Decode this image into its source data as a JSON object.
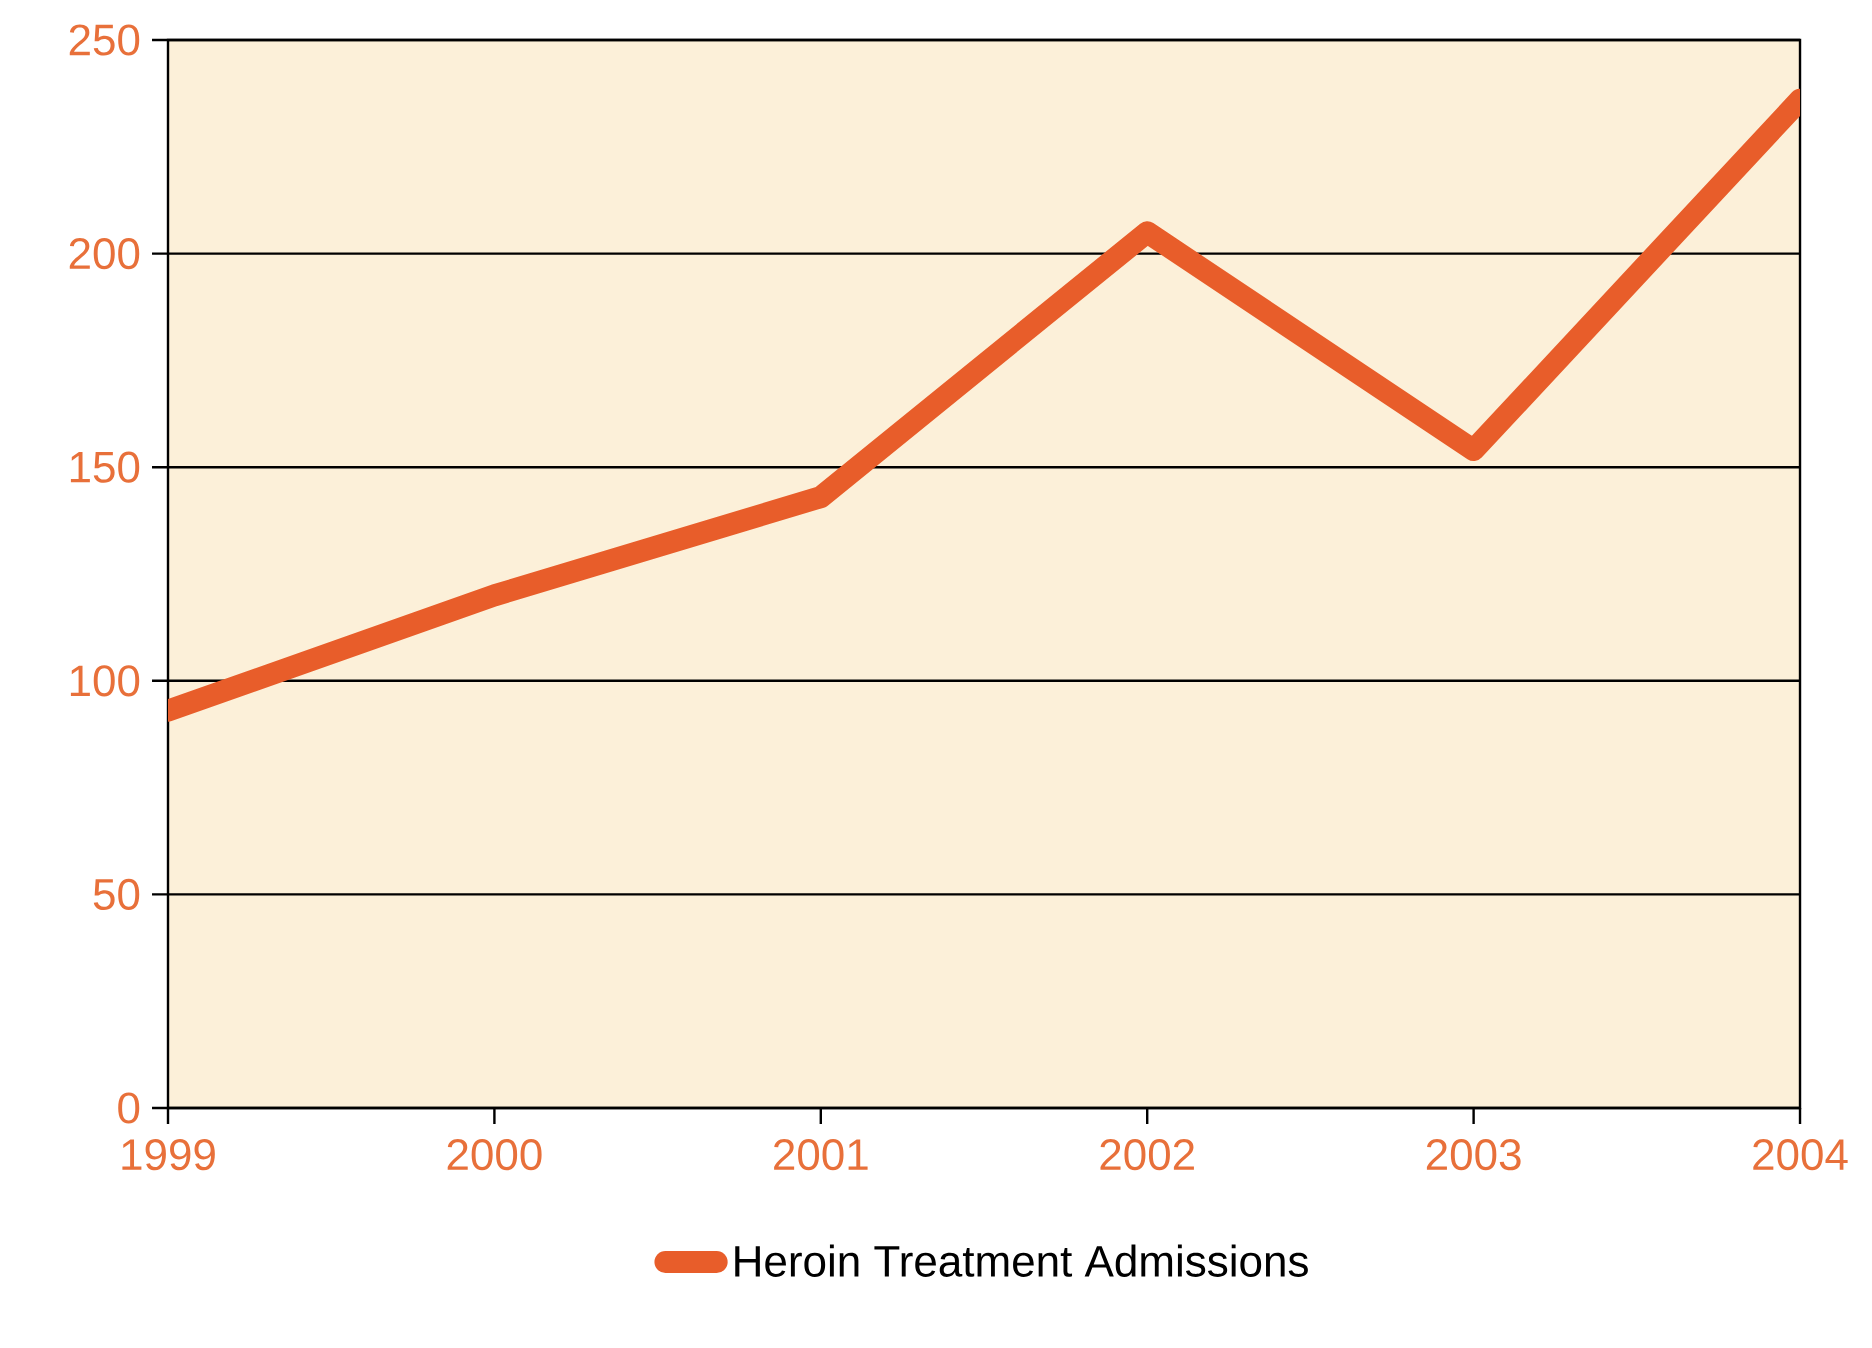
{
  "chart_data": {
    "type": "line",
    "x": [
      1999,
      2000,
      2001,
      2002,
      2003,
      2004
    ],
    "series": [
      {
        "name": "Heroin Treatment Admissions",
        "color": "#e85d2a",
        "values": [
          93,
          120,
          143,
          205,
          154,
          236
        ]
      }
    ],
    "xlim": [
      1999,
      2004
    ],
    "xticks": [
      1999,
      2000,
      2001,
      2002,
      2003,
      2004
    ],
    "ylim": [
      0,
      250
    ],
    "yticks": [
      0,
      50,
      100,
      150,
      200,
      250
    ],
    "grid": "y",
    "legend": "bottom",
    "marker": "none",
    "line_style": "solid"
  }
}
